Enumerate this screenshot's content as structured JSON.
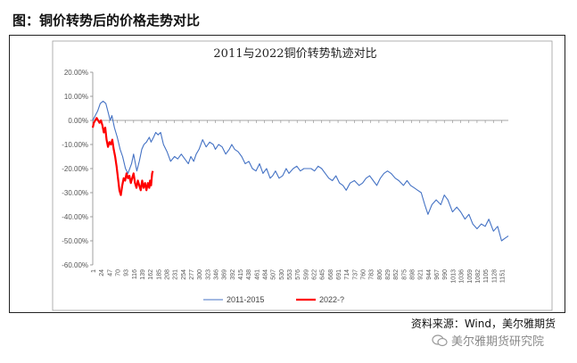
{
  "figure": {
    "title": "图：铜价转势后的价格走势对比",
    "source": "资料来源：Wind，美尔雅期货",
    "watermark": "美尔雅期货研究院"
  },
  "chart_data": {
    "type": "line",
    "title": "2011与2022铜价转势轨迹对比",
    "xlabel": "",
    "ylabel": "",
    "ylim": [
      -0.6,
      0.2
    ],
    "yticks": [
      "20.00%",
      "10.00%",
      "0.00%",
      "-10.00%",
      "-20.00%",
      "-30.00%",
      "-40.00%",
      "-50.00%",
      "-60.00%"
    ],
    "yvalues": [
      0.2,
      0.1,
      0,
      -0.1,
      -0.2,
      -0.3,
      -0.4,
      -0.5,
      -0.6
    ],
    "xticks": [
      "1",
      "24",
      "47",
      "70",
      "93",
      "116",
      "139",
      "162",
      "185",
      "208",
      "231",
      "254",
      "277",
      "300",
      "323",
      "346",
      "369",
      "392",
      "415",
      "438",
      "461",
      "484",
      "507",
      "530",
      "553",
      "576",
      "599",
      "622",
      "645",
      "668",
      "691",
      "714",
      "737",
      "760",
      "783",
      "806",
      "829",
      "852",
      "875",
      "898",
      "921",
      "944",
      "967",
      "990",
      "1013",
      "1036",
      "1059",
      "1082",
      "1105",
      "1128",
      "1151"
    ],
    "xrange": [
      1,
      1170
    ],
    "grid": false,
    "legend": "bottom",
    "colors": {
      "s2011": "#4472c4",
      "s2022": "#ff0000"
    },
    "series": [
      {
        "name": "2011-2015",
        "x": [
          1,
          8,
          15,
          22,
          30,
          38,
          45,
          50,
          55,
          62,
          70,
          78,
          85,
          93,
          100,
          110,
          116,
          125,
          132,
          139,
          145,
          152,
          160,
          165,
          172,
          178,
          185,
          192,
          200,
          210,
          220,
          231,
          240,
          250,
          260,
          270,
          277,
          285,
          292,
          300,
          310,
          320,
          330,
          340,
          346,
          355,
          365,
          375,
          385,
          392,
          400,
          410,
          420,
          430,
          440,
          450,
          460,
          470,
          480,
          490,
          500,
          507,
          515,
          525,
          535,
          545,
          553,
          565,
          575,
          585,
          595,
          605,
          615,
          625,
          635,
          645,
          655,
          665,
          675,
          685,
          695,
          705,
          714,
          725,
          737,
          750,
          760,
          770,
          780,
          790,
          800,
          810,
          820,
          830,
          840,
          852,
          862,
          875,
          885,
          895,
          905,
          915,
          925,
          935,
          944,
          955,
          967,
          980,
          990,
          1000,
          1013,
          1025,
          1036,
          1048,
          1059,
          1070,
          1082,
          1094,
          1105,
          1115,
          1128,
          1140,
          1151,
          1160,
          1170
        ],
        "values": [
          0.0,
          0.02,
          0.04,
          0.07,
          0.08,
          0.07,
          0.03,
          0.0,
          0.02,
          -0.03,
          -0.07,
          -0.12,
          -0.15,
          -0.2,
          -0.22,
          -0.18,
          -0.14,
          -0.21,
          -0.17,
          -0.12,
          -0.1,
          -0.09,
          -0.07,
          -0.09,
          -0.07,
          -0.05,
          -0.06,
          -0.05,
          -0.1,
          -0.13,
          -0.17,
          -0.15,
          -0.16,
          -0.14,
          -0.16,
          -0.18,
          -0.15,
          -0.17,
          -0.14,
          -0.12,
          -0.08,
          -0.11,
          -0.09,
          -0.1,
          -0.12,
          -0.1,
          -0.11,
          -0.14,
          -0.12,
          -0.1,
          -0.12,
          -0.13,
          -0.15,
          -0.18,
          -0.17,
          -0.2,
          -0.21,
          -0.18,
          -0.22,
          -0.2,
          -0.24,
          -0.23,
          -0.21,
          -0.24,
          -0.23,
          -0.2,
          -0.22,
          -0.2,
          -0.19,
          -0.21,
          -0.2,
          -0.2,
          -0.2,
          -0.21,
          -0.19,
          -0.2,
          -0.22,
          -0.24,
          -0.25,
          -0.23,
          -0.26,
          -0.27,
          -0.29,
          -0.26,
          -0.25,
          -0.27,
          -0.26,
          -0.24,
          -0.23,
          -0.25,
          -0.27,
          -0.24,
          -0.22,
          -0.21,
          -0.22,
          -0.24,
          -0.25,
          -0.27,
          -0.25,
          -0.27,
          -0.28,
          -0.29,
          -0.3,
          -0.35,
          -0.39,
          -0.35,
          -0.33,
          -0.35,
          -0.31,
          -0.33,
          -0.38,
          -0.36,
          -0.38,
          -0.41,
          -0.39,
          -0.43,
          -0.45,
          -0.43,
          -0.44,
          -0.41,
          -0.46,
          -0.44,
          -0.5,
          -0.49,
          -0.48
        ]
      },
      {
        "name": "2022-?",
        "x": [
          1,
          4,
          8,
          12,
          16,
          20,
          24,
          28,
          32,
          36,
          40,
          44,
          48,
          52,
          56,
          60,
          64,
          68,
          72,
          76,
          80,
          84,
          88,
          92,
          96,
          100,
          104,
          108,
          112,
          116,
          120,
          124,
          128,
          132,
          136,
          140,
          144,
          148,
          152,
          156,
          160,
          162,
          165,
          168,
          170
        ],
        "values": [
          -0.03,
          -0.01,
          0.0,
          0.01,
          0.0,
          -0.01,
          0.0,
          -0.02,
          -0.05,
          -0.03,
          -0.08,
          -0.11,
          -0.09,
          -0.1,
          -0.08,
          -0.12,
          -0.15,
          -0.19,
          -0.24,
          -0.29,
          -0.31,
          -0.27,
          -0.24,
          -0.25,
          -0.22,
          -0.24,
          -0.23,
          -0.26,
          -0.24,
          -0.22,
          -0.26,
          -0.28,
          -0.25,
          -0.27,
          -0.29,
          -0.25,
          -0.28,
          -0.26,
          -0.29,
          -0.26,
          -0.28,
          -0.25,
          -0.27,
          -0.22,
          -0.21
        ]
      }
    ]
  }
}
